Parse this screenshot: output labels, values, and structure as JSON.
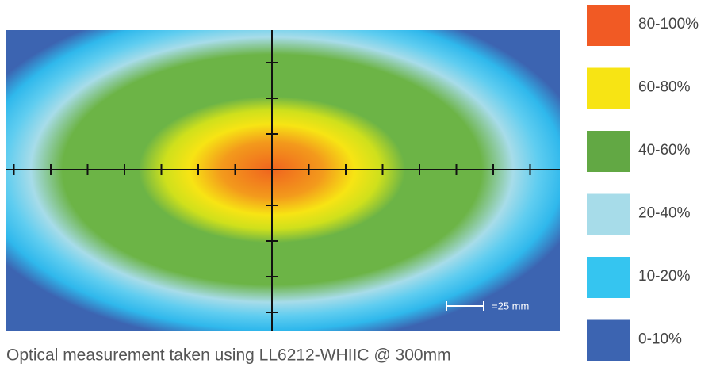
{
  "legend": [
    {
      "label": "80-100%",
      "color": "#f15a24"
    },
    {
      "label": "60-80%",
      "color": "#f7e414"
    },
    {
      "label": "40-60%",
      "color": "#62a844"
    },
    {
      "label": "20-40%",
      "color": "#a7dce9"
    },
    {
      "label": "10-20%",
      "color": "#35c5f0"
    },
    {
      "label": "0-10%",
      "color": "#3c64b1"
    }
  ],
  "scale_label": "=25 mm",
  "caption": "Optical measurement taken using LL6212-WHIIC @ 300mm"
}
